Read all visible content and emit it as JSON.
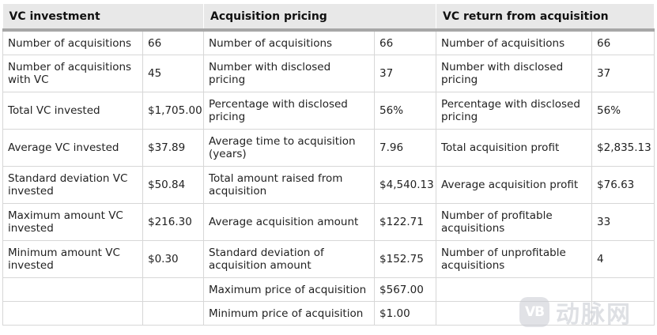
{
  "headers": [
    "VC investment",
    "Acquisition pricing",
    "VC return from acquisition"
  ],
  "rows": [
    [
      "Number of acquisitions",
      "66",
      "Number of acquisitions",
      "66",
      "Number of acquisitions",
      "66"
    ],
    [
      "Number of acquisitions with VC",
      "45",
      "Number with disclosed pricing",
      "37",
      "Number with disclosed pricing",
      "37"
    ],
    [
      "Total VC invested",
      "$1,705.00",
      "Percentage with disclosed pricing",
      "56%",
      "Percentage with disclosed pricing",
      "56%"
    ],
    [
      "Average VC invested",
      "$37.89",
      "Average time to acquisition (years)",
      "7.96",
      "Total acquisition profit",
      "$2,835.13"
    ],
    [
      "Standard deviation VC invested",
      "$50.84",
      "Total amount raised from acquisition",
      "$4,540.13",
      "Average acquisition profit",
      "$76.63"
    ],
    [
      "Maximum amount VC invested",
      "$216.30",
      "Average acquisition amount",
      "$122.71",
      "Number of profitable acquisitions",
      "33"
    ],
    [
      "Minimum amount VC invested",
      "$0.30",
      "Standard deviation of acquisition amount",
      "$152.75",
      "Number of unprofitable acquisitions",
      "4"
    ],
    [
      "",
      "",
      "Maximum price of acquisition",
      "$567.00",
      "",
      ""
    ],
    [
      "",
      "",
      "Minimum price of acquisition",
      "$1.00",
      "",
      ""
    ]
  ],
  "watermark": {
    "logo_text": "VB",
    "text": "动脉网"
  }
}
